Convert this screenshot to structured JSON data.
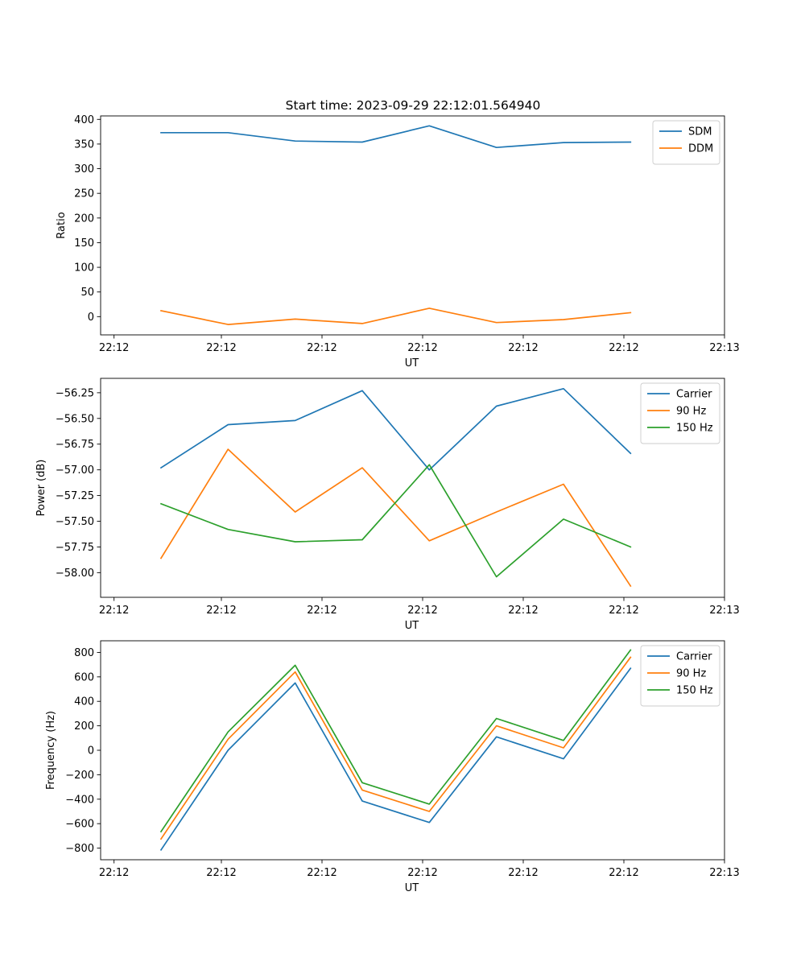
{
  "figure": {
    "title": "Start time: 2023-09-29 22:12:01.564940"
  },
  "colors": {
    "blue": "#1f77b4",
    "orange": "#ff7f0e",
    "green": "#2ca02c"
  },
  "chart_data": [
    {
      "type": "line",
      "title": "Start time: 2023-09-29 22:12:01.564940",
      "xlabel": "UT",
      "ylabel": "Ratio",
      "xlim": [
        0,
        9.3
      ],
      "ylim": [
        -37,
        407
      ],
      "x_ticks": [
        0.2,
        1.8,
        3.3,
        4.8,
        6.3,
        7.8,
        9.3
      ],
      "x_tick_labels": [
        "22:12",
        "22:12",
        "22:12",
        "22:12",
        "22:12",
        "22:12",
        "22:13"
      ],
      "y_ticks": [
        0,
        50,
        100,
        150,
        200,
        250,
        300,
        350,
        400
      ],
      "y_tick_labels": [
        "0",
        "50",
        "100",
        "150",
        "200",
        "250",
        "300",
        "350",
        "400"
      ],
      "x": [
        0.9,
        1.9,
        2.9,
        3.9,
        4.9,
        5.9,
        6.9,
        7.9
      ],
      "legend_position": "upper right",
      "series": [
        {
          "name": "SDM",
          "color": "#1f77b4",
          "values": [
            373,
            373,
            356,
            354,
            387,
            343,
            353,
            354
          ]
        },
        {
          "name": "DDM",
          "color": "#ff7f0e",
          "values": [
            12,
            -16,
            -5,
            -14,
            17,
            -12,
            -6,
            8
          ]
        }
      ]
    },
    {
      "type": "line",
      "title": "",
      "xlabel": "UT",
      "ylabel": "Power (dB)",
      "xlim": [
        0,
        9.3
      ],
      "ylim": [
        -58.24,
        -56.11
      ],
      "x_ticks": [
        0.2,
        1.8,
        3.3,
        4.8,
        6.3,
        7.8,
        9.3
      ],
      "x_tick_labels": [
        "22:12",
        "22:12",
        "22:12",
        "22:12",
        "22:12",
        "22:12",
        "22:13"
      ],
      "y_ticks": [
        -58.0,
        -57.75,
        -57.5,
        -57.25,
        -57.0,
        -56.75,
        -56.5,
        -56.25
      ],
      "y_tick_labels": [
        "−58.00",
        "−57.75",
        "−57.50",
        "−57.25",
        "−57.00",
        "−56.75",
        "−56.50",
        "−56.25"
      ],
      "x": [
        0.9,
        1.9,
        2.9,
        3.9,
        4.9,
        5.9,
        6.9,
        7.9
      ],
      "legend_position": "upper right",
      "series": [
        {
          "name": "Carrier",
          "color": "#1f77b4",
          "values": [
            -56.98,
            -56.56,
            -56.52,
            -56.23,
            -57.0,
            -56.38,
            -56.21,
            -56.84
          ]
        },
        {
          "name": "90 Hz",
          "color": "#ff7f0e",
          "values": [
            -57.86,
            -56.8,
            -57.41,
            -56.98,
            -57.69,
            -57.41,
            -57.14,
            -58.13
          ]
        },
        {
          "name": "150 Hz",
          "color": "#2ca02c",
          "values": [
            -57.33,
            -57.58,
            -57.7,
            -57.68,
            -56.95,
            -58.04,
            -57.48,
            -57.75
          ]
        }
      ]
    },
    {
      "type": "line",
      "title": "",
      "xlabel": "UT",
      "ylabel": "Frequency (Hz)",
      "xlim": [
        0,
        9.3
      ],
      "ylim": [
        -895,
        895
      ],
      "x_ticks": [
        0.2,
        1.8,
        3.3,
        4.8,
        6.3,
        7.8,
        9.3
      ],
      "x_tick_labels": [
        "22:12",
        "22:12",
        "22:12",
        "22:12",
        "22:12",
        "22:12",
        "22:13"
      ],
      "y_ticks": [
        -800,
        -600,
        -400,
        -200,
        0,
        200,
        400,
        600,
        800
      ],
      "y_tick_labels": [
        "−800",
        "−600",
        "−400",
        "−200",
        "0",
        "200",
        "400",
        "600",
        "800"
      ],
      "x": [
        0.9,
        1.9,
        2.9,
        3.9,
        4.9,
        5.9,
        6.9,
        7.9
      ],
      "legend_position": "upper right",
      "series": [
        {
          "name": "Carrier",
          "color": "#1f77b4",
          "values": [
            -815,
            0,
            550,
            -415,
            -590,
            110,
            -70,
            670
          ]
        },
        {
          "name": "90 Hz",
          "color": "#ff7f0e",
          "values": [
            -725,
            90,
            640,
            -325,
            -500,
            200,
            20,
            760
          ]
        },
        {
          "name": "150 Hz",
          "color": "#2ca02c",
          "values": [
            -665,
            150,
            695,
            -265,
            -440,
            260,
            80,
            820
          ]
        }
      ]
    }
  ]
}
